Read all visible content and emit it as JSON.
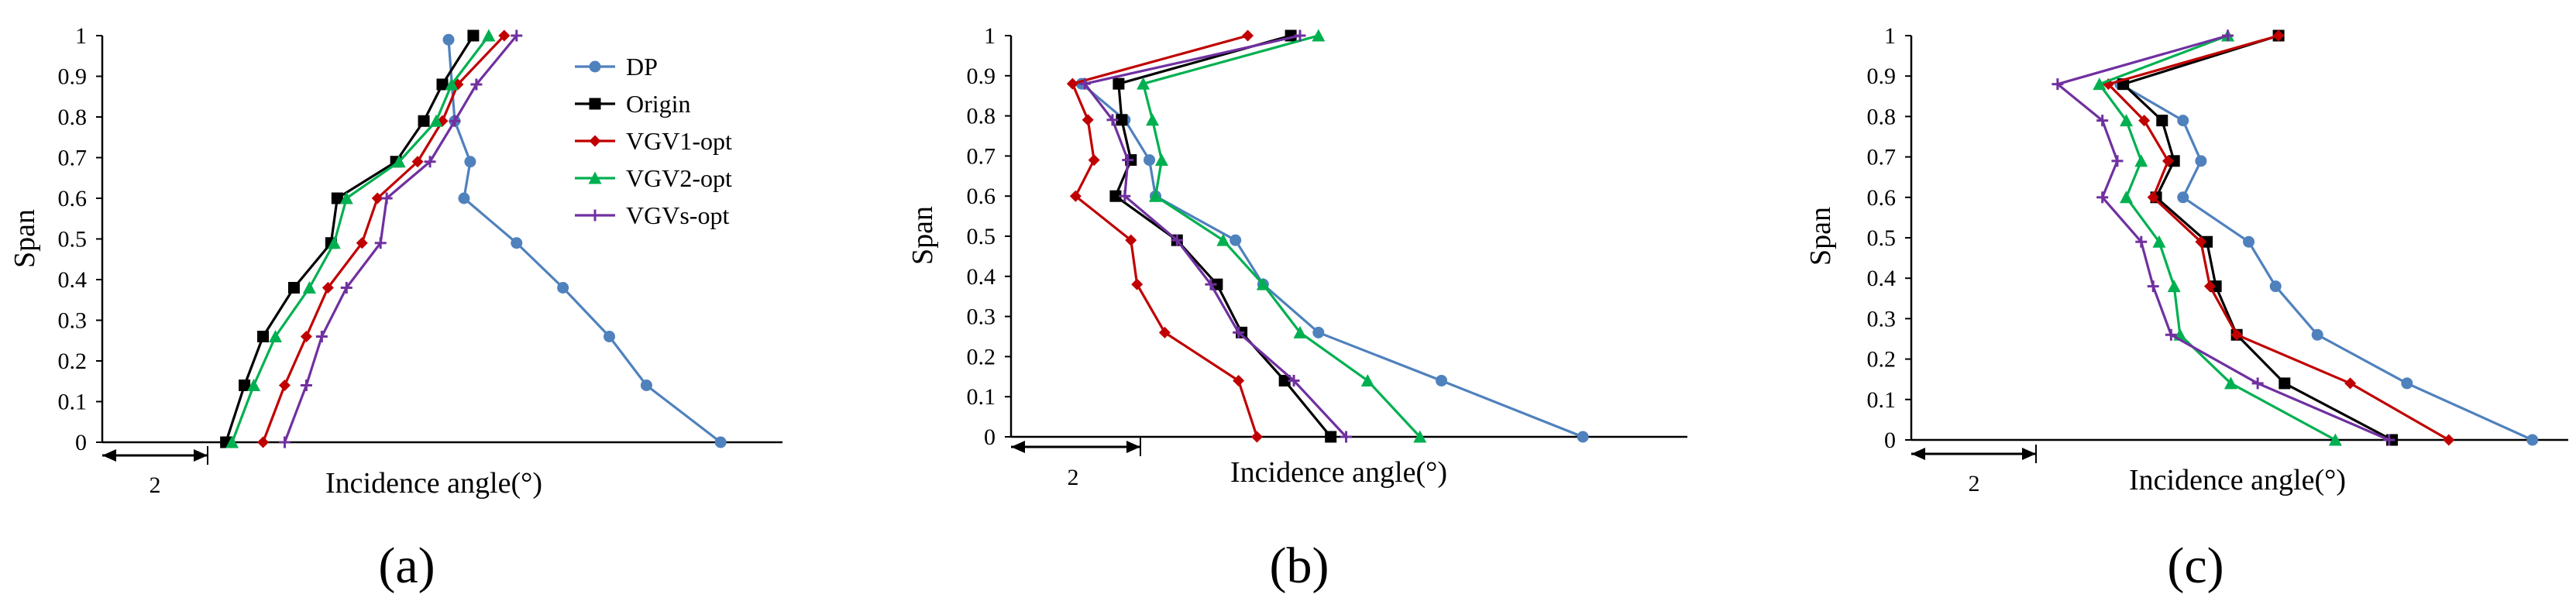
{
  "chart_data": [
    {
      "type": "line",
      "panel_label": "(a)",
      "title": "",
      "xlabel": "Incidence angle(°)",
      "ylabel": "Span",
      "x_scale_annotation": "2",
      "xlim": [
        0,
        11.0
      ],
      "ylim": [
        0,
        1
      ],
      "yticks": [
        "0",
        "0.1",
        "0.2",
        "0.3",
        "0.4",
        "0.5",
        "0.6",
        "0.7",
        "0.8",
        "0.9",
        "1"
      ],
      "grid": false,
      "legend": "top-right",
      "series": [
        {
          "name": "DP",
          "color": "#4f81bd",
          "marker": "circle",
          "points": [
            [
              10.0,
              0
            ],
            [
              8.8,
              0.14
            ],
            [
              8.2,
              0.26
            ],
            [
              7.45,
              0.38
            ],
            [
              6.7,
              0.49
            ],
            [
              5.85,
              0.6
            ],
            [
              5.95,
              0.69
            ],
            [
              5.7,
              0.79
            ],
            [
              5.6,
              0.99
            ]
          ]
        },
        {
          "name": "Origin",
          "color": "#000000",
          "marker": "square",
          "points": [
            [
              2.0,
              0
            ],
            [
              2.3,
              0.14
            ],
            [
              2.6,
              0.26
            ],
            [
              3.1,
              0.38
            ],
            [
              3.7,
              0.49
            ],
            [
              3.8,
              0.6
            ],
            [
              4.75,
              0.69
            ],
            [
              5.2,
              0.79
            ],
            [
              5.5,
              0.88
            ],
            [
              6.0,
              1.0
            ]
          ]
        },
        {
          "name": "VGV1-opt",
          "color": "#c00000",
          "marker": "diamond",
          "points": [
            [
              2.6,
              0
            ],
            [
              2.95,
              0.14
            ],
            [
              3.3,
              0.26
            ],
            [
              3.65,
              0.38
            ],
            [
              4.2,
              0.49
            ],
            [
              4.45,
              0.6
            ],
            [
              5.1,
              0.69
            ],
            [
              5.5,
              0.79
            ],
            [
              5.75,
              0.88
            ],
            [
              6.5,
              1.0
            ]
          ]
        },
        {
          "name": "VGV2-opt",
          "color": "#00b050",
          "marker": "triangle",
          "points": [
            [
              2.1,
              0
            ],
            [
              2.45,
              0.14
            ],
            [
              2.8,
              0.26
            ],
            [
              3.35,
              0.38
            ],
            [
              3.75,
              0.49
            ],
            [
              3.95,
              0.6
            ],
            [
              4.8,
              0.69
            ],
            [
              5.4,
              0.79
            ],
            [
              5.65,
              0.88
            ],
            [
              6.25,
              1.0
            ]
          ]
        },
        {
          "name": "VGVs-opt",
          "color": "#7030a0",
          "marker": "cross",
          "points": [
            [
              2.95,
              0
            ],
            [
              3.3,
              0.14
            ],
            [
              3.55,
              0.26
            ],
            [
              3.95,
              0.38
            ],
            [
              4.5,
              0.49
            ],
            [
              4.6,
              0.6
            ],
            [
              5.3,
              0.69
            ],
            [
              5.7,
              0.79
            ],
            [
              6.05,
              0.88
            ],
            [
              6.7,
              1.0
            ]
          ]
        }
      ]
    },
    {
      "type": "line",
      "panel_label": "(b)",
      "title": "",
      "xlabel": "Incidence angle(°)",
      "ylabel": "Span",
      "x_scale_annotation": "2",
      "xlim": [
        0,
        11.0
      ],
      "ylim": [
        0,
        1
      ],
      "yticks": [
        "0",
        "0.1",
        "0.2",
        "0.3",
        "0.4",
        "0.5",
        "0.6",
        "0.7",
        "0.8",
        "0.9",
        "1"
      ],
      "grid": false,
      "legend": "none",
      "series": [
        {
          "name": "DP",
          "color": "#4f81bd",
          "marker": "circle",
          "points": [
            [
              9.3,
              0
            ],
            [
              7.0,
              0.14
            ],
            [
              5.0,
              0.26
            ],
            [
              4.1,
              0.38
            ],
            [
              3.65,
              0.49
            ],
            [
              2.35,
              0.6
            ],
            [
              2.25,
              0.69
            ],
            [
              1.85,
              0.79
            ],
            [
              1.15,
              0.88
            ]
          ]
        },
        {
          "name": "Origin",
          "color": "#000000",
          "marker": "square",
          "points": [
            [
              5.2,
              0
            ],
            [
              4.45,
              0.14
            ],
            [
              3.75,
              0.26
            ],
            [
              3.35,
              0.38
            ],
            [
              2.7,
              0.49
            ],
            [
              1.7,
              0.6
            ],
            [
              1.95,
              0.69
            ],
            [
              1.8,
              0.79
            ],
            [
              1.75,
              0.88
            ],
            [
              4.55,
              1.0
            ]
          ]
        },
        {
          "name": "VGV1-opt",
          "color": "#c00000",
          "marker": "diamond",
          "points": [
            [
              4.0,
              0
            ],
            [
              3.7,
              0.14
            ],
            [
              2.5,
              0.26
            ],
            [
              2.05,
              0.38
            ],
            [
              1.95,
              0.49
            ],
            [
              1.05,
              0.6
            ],
            [
              1.35,
              0.69
            ],
            [
              1.25,
              0.79
            ],
            [
              1.0,
              0.88
            ],
            [
              3.85,
              1.0
            ]
          ]
        },
        {
          "name": "VGV2-opt",
          "color": "#00b050",
          "marker": "triangle",
          "points": [
            [
              6.65,
              0
            ],
            [
              5.8,
              0.14
            ],
            [
              4.7,
              0.26
            ],
            [
              4.1,
              0.38
            ],
            [
              3.45,
              0.49
            ],
            [
              2.35,
              0.6
            ],
            [
              2.45,
              0.69
            ],
            [
              2.3,
              0.79
            ],
            [
              2.15,
              0.88
            ],
            [
              5.0,
              1.0
            ]
          ]
        },
        {
          "name": "VGVs-opt",
          "color": "#7030a0",
          "marker": "cross",
          "points": [
            [
              5.45,
              0
            ],
            [
              4.6,
              0.14
            ],
            [
              3.7,
              0.26
            ],
            [
              3.25,
              0.38
            ],
            [
              2.7,
              0.49
            ],
            [
              1.85,
              0.6
            ],
            [
              1.9,
              0.69
            ],
            [
              1.65,
              0.79
            ],
            [
              1.2,
              0.88
            ],
            [
              4.7,
              1.0
            ]
          ]
        }
      ]
    },
    {
      "type": "line",
      "panel_label": "(c)",
      "title": "",
      "xlabel": "Incidence angle(°)",
      "ylabel": "Span",
      "x_scale_annotation": "2",
      "xlim": [
        0,
        11.0
      ],
      "ylim": [
        0,
        1
      ],
      "yticks": [
        "0",
        "0.1",
        "0.2",
        "0.3",
        "0.4",
        "0.5",
        "0.6",
        "0.7",
        "0.8",
        "0.9",
        "1"
      ],
      "grid": false,
      "legend": "none",
      "series": [
        {
          "name": "DP",
          "color": "#4f81bd",
          "marker": "circle",
          "points": [
            [
              10.4,
              0
            ],
            [
              8.3,
              0.14
            ],
            [
              6.8,
              0.26
            ],
            [
              6.1,
              0.38
            ],
            [
              5.65,
              0.49
            ],
            [
              4.55,
              0.6
            ],
            [
              4.85,
              0.69
            ],
            [
              4.55,
              0.79
            ],
            [
              3.5,
              0.88
            ]
          ]
        },
        {
          "name": "Origin",
          "color": "#000000",
          "marker": "square",
          "points": [
            [
              8.05,
              0
            ],
            [
              6.25,
              0.14
            ],
            [
              5.45,
              0.26
            ],
            [
              5.1,
              0.38
            ],
            [
              4.95,
              0.49
            ],
            [
              4.1,
              0.6
            ],
            [
              4.4,
              0.69
            ],
            [
              4.2,
              0.79
            ],
            [
              3.55,
              0.88
            ],
            [
              6.15,
              1.0
            ]
          ]
        },
        {
          "name": "VGV1-opt",
          "color": "#c00000",
          "marker": "diamond",
          "points": [
            [
              9.0,
              0
            ],
            [
              7.35,
              0.14
            ],
            [
              5.45,
              0.26
            ],
            [
              5.0,
              0.38
            ],
            [
              4.85,
              0.49
            ],
            [
              4.05,
              0.6
            ],
            [
              4.3,
              0.69
            ],
            [
              3.9,
              0.79
            ],
            [
              3.3,
              0.88
            ],
            [
              6.15,
              1.0
            ]
          ]
        },
        {
          "name": "VGV2-opt",
          "color": "#00b050",
          "marker": "triangle",
          "points": [
            [
              7.1,
              0
            ],
            [
              5.35,
              0.14
            ],
            [
              4.5,
              0.26
            ],
            [
              4.4,
              0.38
            ],
            [
              4.15,
              0.49
            ],
            [
              3.6,
              0.6
            ],
            [
              3.85,
              0.69
            ],
            [
              3.6,
              0.79
            ],
            [
              3.15,
              0.88
            ],
            [
              5.3,
              1.0
            ]
          ]
        },
        {
          "name": "VGVs-opt",
          "color": "#7030a0",
          "marker": "cross",
          "points": [
            [
              8.0,
              0
            ],
            [
              5.8,
              0.14
            ],
            [
              4.35,
              0.26
            ],
            [
              4.05,
              0.38
            ],
            [
              3.85,
              0.49
            ],
            [
              3.2,
              0.6
            ],
            [
              3.45,
              0.69
            ],
            [
              3.2,
              0.79
            ],
            [
              2.45,
              0.88
            ],
            [
              5.3,
              1.0
            ]
          ]
        }
      ]
    }
  ]
}
